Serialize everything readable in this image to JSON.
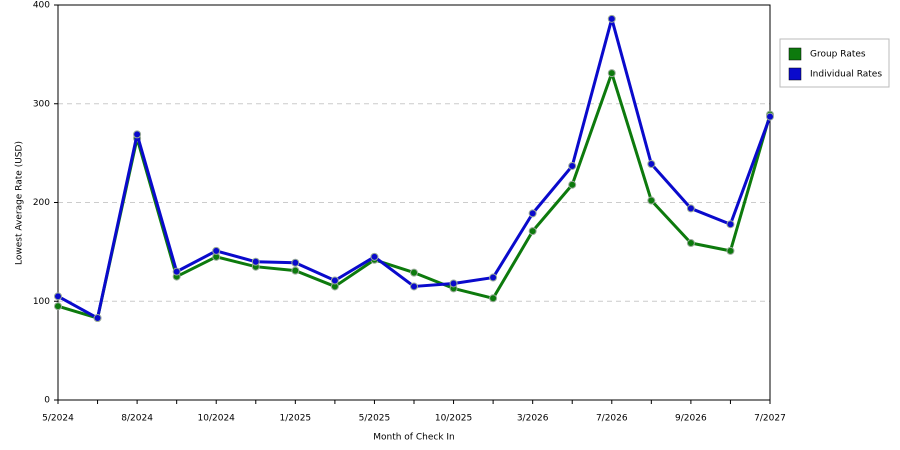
{
  "chart_data": {
    "type": "line",
    "x_label": "Month of Check In",
    "y_label": "Lowest Average Rate (USD)",
    "categories": [
      "5/2024",
      null,
      "8/2024",
      null,
      "10/2024",
      null,
      "1/2025",
      null,
      "5/2025",
      null,
      "10/2025",
      null,
      "3/2026",
      null,
      "7/2026",
      null,
      "9/2026",
      null,
      "7/2027"
    ],
    "series": [
      {
        "name": "Group Rates",
        "color": "#0d7a0d",
        "values": [
          95,
          83,
          265,
          125,
          145,
          135,
          131,
          115,
          142,
          129,
          113,
          103,
          171,
          218,
          331,
          202,
          159,
          151,
          289
        ]
      },
      {
        "name": "Individual Rates",
        "color": "#0a0acc",
        "values": [
          105,
          83,
          269,
          130,
          151,
          140,
          139,
          121,
          145,
          115,
          118,
          124,
          189,
          237,
          386,
          239,
          194,
          178,
          287
        ]
      }
    ],
    "ylim": [
      0,
      400
    ],
    "yticks": [
      0,
      100,
      200,
      300,
      400
    ],
    "grid": true,
    "legend": "top-right"
  }
}
